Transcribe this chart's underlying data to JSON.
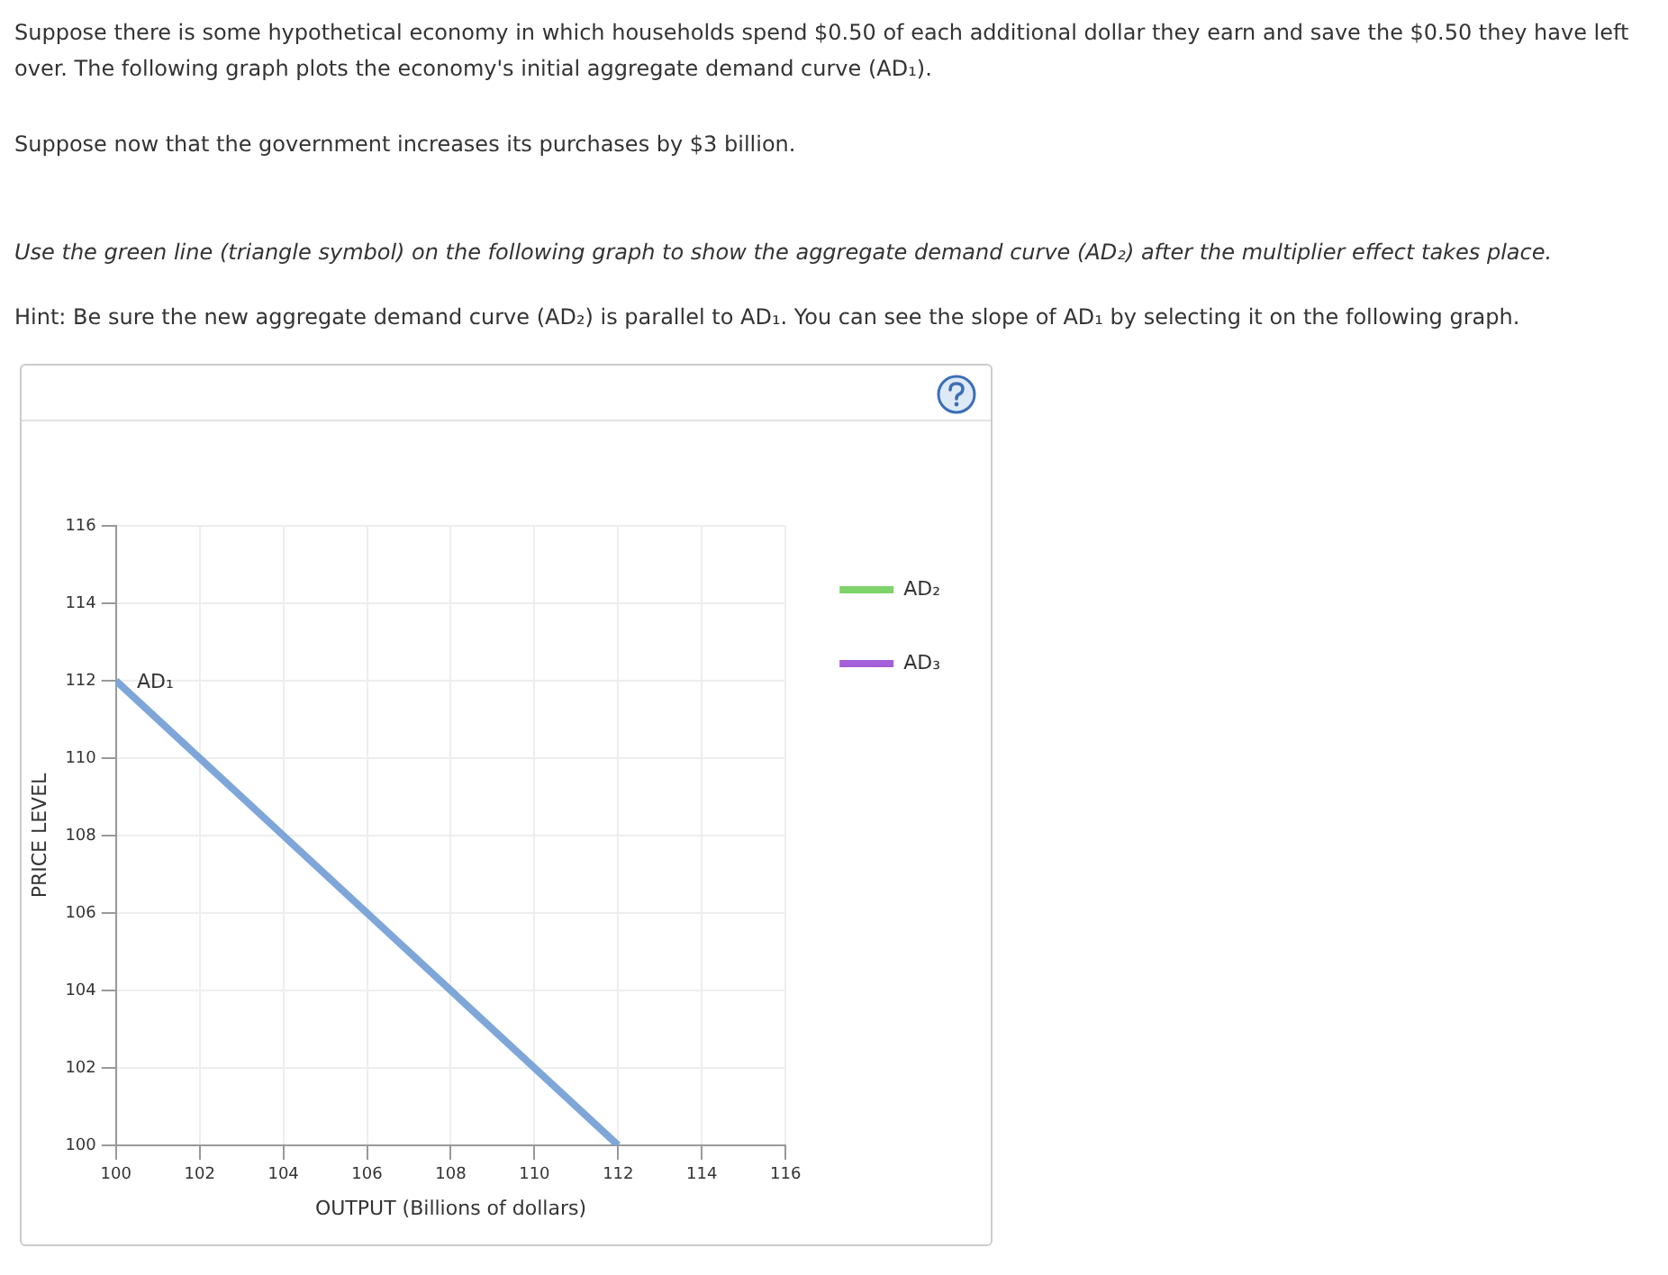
{
  "chart_data": {
    "type": "line",
    "title": "Suppose there is some hypothetical economy in which households spend $0.50 of each additional dollar they earn and save the $0.50 they have left over. The following graph plots the economy's initial aggregate demand curve (AD₁).",
    "subtitle": "Suppose now that the government increases its purchases by $3 billion.",
    "annotations": [
      "Use the green line (triangle symbol) on the following graph to show the aggregate demand curve (AD₂) after the multiplier effect takes place.",
      "Hint: Be sure the new aggregate demand curve (AD₂) is parallel to AD₁. You can see the slope of AD₁ by selecting it on the following graph.",
      {
        "text": "AD₁",
        "x": 100.5,
        "y": 111.7
      }
    ],
    "xlabel": "OUTPUT (Billions of dollars)",
    "ylabel": "PRICE LEVEL",
    "x": [
      100,
      112
    ],
    "series": [
      {
        "color": "#7ea6d8",
        "values": [
          112,
          100
        ],
        "marker": "none"
      },
      {
        "name": "AD₂",
        "color": "#7ed36a",
        "values": [
          null,
          null
        ],
        "marker": "triangle"
      },
      {
        "name": "AD₃",
        "color": "#a55fd9",
        "values": [
          null,
          null
        ],
        "marker": "diamond"
      }
    ],
    "xlim": [
      100,
      116
    ],
    "xticks": [
      100,
      102,
      104,
      106,
      108,
      110,
      112,
      114,
      116
    ],
    "ylim": [
      100,
      116
    ],
    "yticks": [
      100,
      102,
      104,
      106,
      108,
      110,
      112,
      114,
      116
    ],
    "grid": true,
    "legend": "right"
  }
}
